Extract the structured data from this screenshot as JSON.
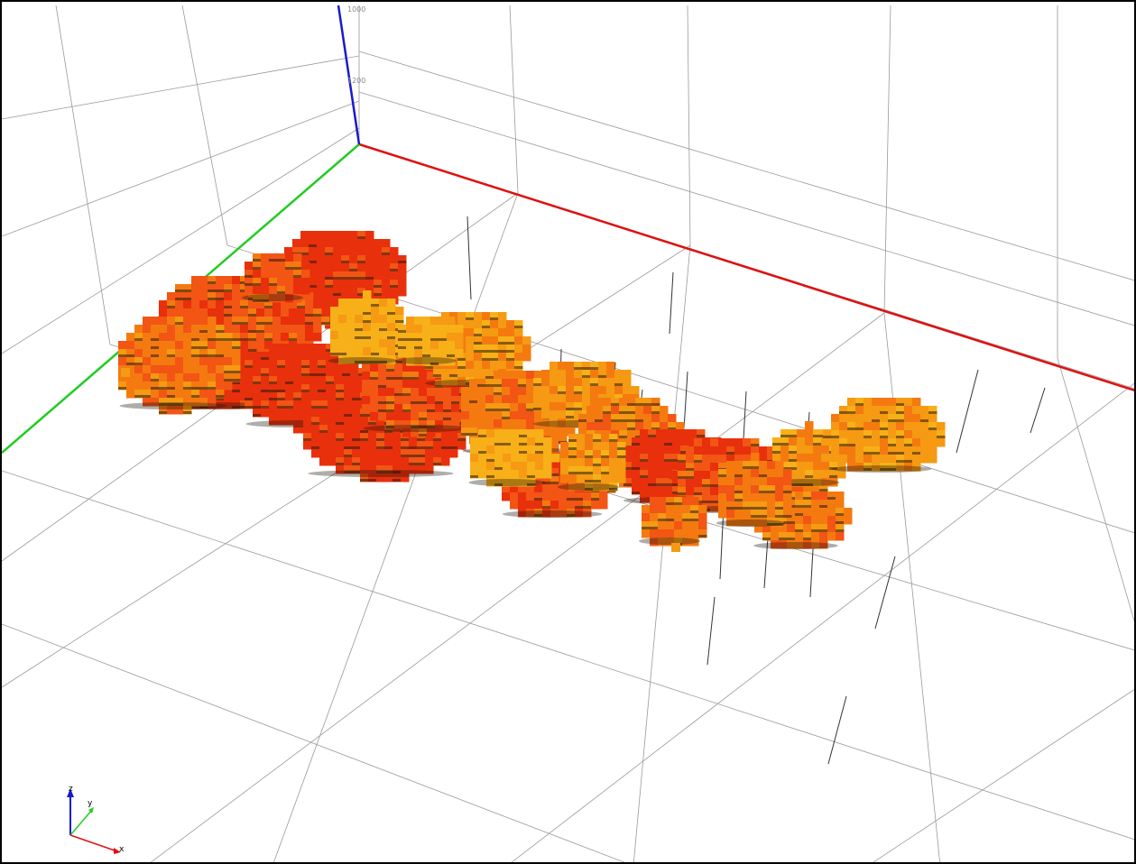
{
  "viewport": {
    "background": "#ffffff",
    "axis_colors": {
      "x": "#e01010",
      "y": "#22cc22",
      "z": "#1a1acc"
    },
    "grid_color": "#9a9a9a",
    "block_palette": [
      "#e8300c",
      "#f25514",
      "#f47a10",
      "#f59a12",
      "#f8b018"
    ],
    "tick_labels": [
      "1000",
      "1200"
    ]
  },
  "triad": {
    "z_label": "z",
    "y_label": "y",
    "x_label": "x"
  }
}
